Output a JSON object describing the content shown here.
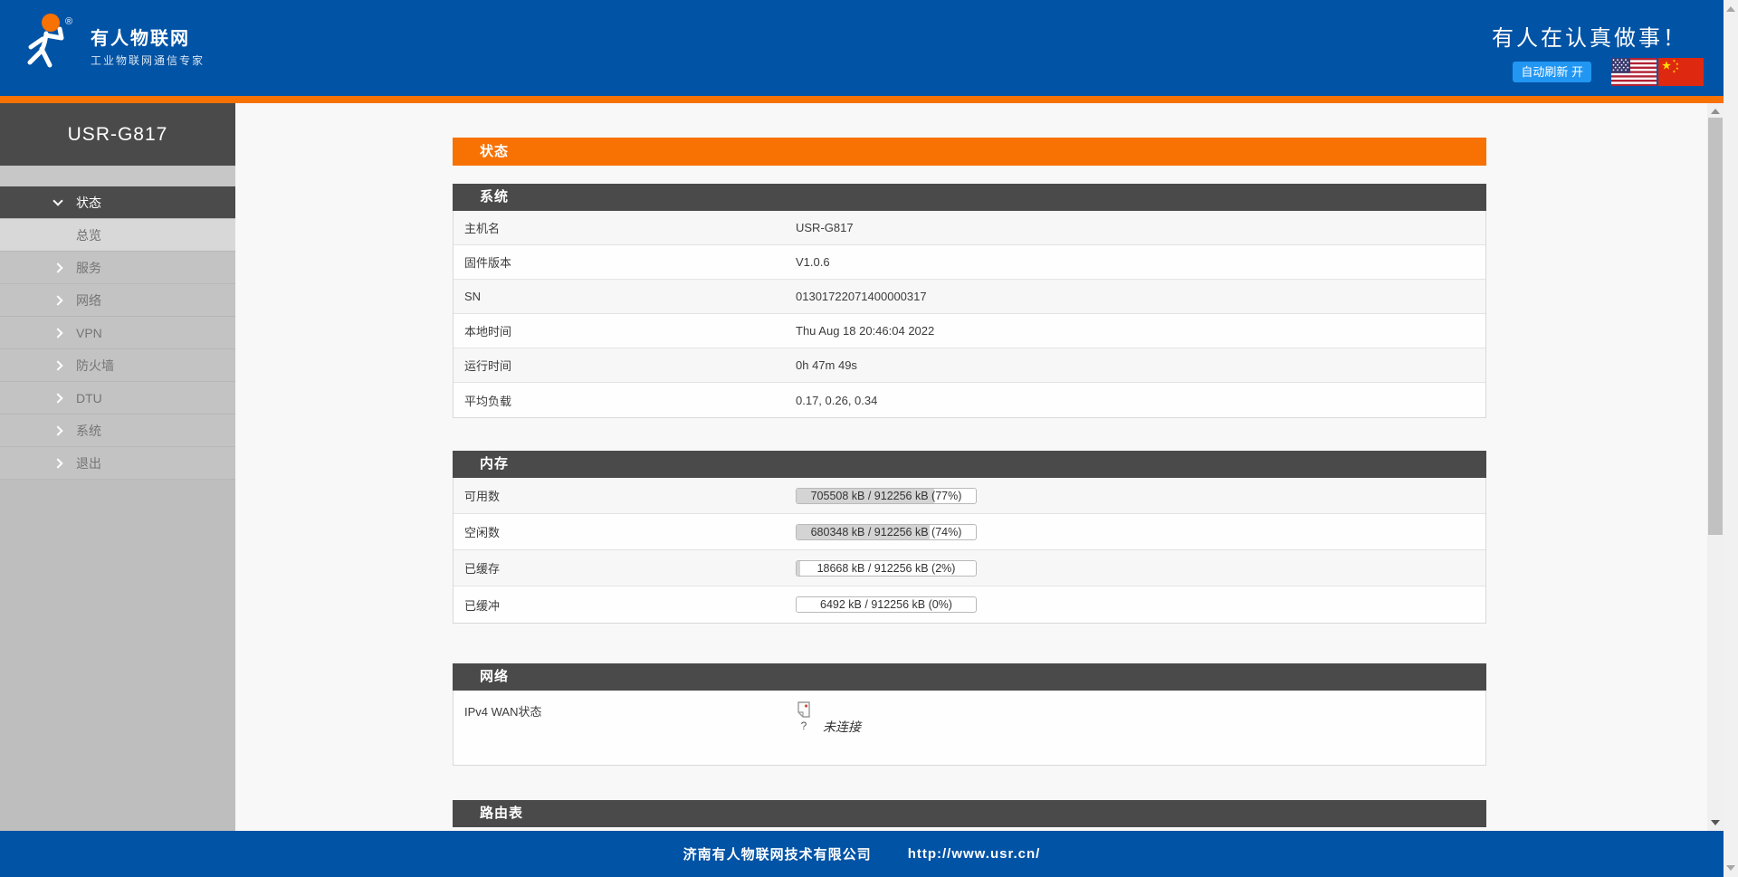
{
  "colors": {
    "header_blue": "#0153a5",
    "accent_orange": "#f87103",
    "section_dark": "#4a4a4a",
    "sidebar_gray": "#bebebe",
    "refresh_button_blue": "#2196f3",
    "progress_fill_gray": "#d4d4d4"
  },
  "header": {
    "brand_name": "有人物联网",
    "brand_reg": "®",
    "brand_tagline": "工业物联网通信专家",
    "slogan": "有人在认真做事！",
    "autorefresh_label": "自动刷新 开",
    "flags": [
      "us-flag",
      "cn-flag"
    ]
  },
  "sidebar": {
    "device_title": "USR-G817",
    "items": [
      {
        "label": "状态",
        "chevron": "down",
        "state": "active"
      },
      {
        "label": "总览",
        "chevron": "none",
        "state": "selected"
      },
      {
        "label": "服务",
        "chevron": "right",
        "state": "normal"
      },
      {
        "label": "网络",
        "chevron": "right",
        "state": "normal"
      },
      {
        "label": "VPN",
        "chevron": "right",
        "state": "normal"
      },
      {
        "label": "防火墙",
        "chevron": "right",
        "state": "normal"
      },
      {
        "label": "DTU",
        "chevron": "right",
        "state": "normal"
      },
      {
        "label": "系统",
        "chevron": "right",
        "state": "normal"
      },
      {
        "label": "退出",
        "chevron": "right",
        "state": "normal"
      }
    ]
  },
  "main": {
    "page_title": "状态",
    "system": {
      "title": "系统",
      "rows": [
        {
          "label": "主机名",
          "value": "USR-G817"
        },
        {
          "label": "固件版本",
          "value": "V1.0.6"
        },
        {
          "label": "SN",
          "value": "01301722071400000317"
        },
        {
          "label": "本地时间",
          "value": "Thu Aug 18 20:46:04 2022"
        },
        {
          "label": "运行时间",
          "value": "0h 47m 49s"
        },
        {
          "label": "平均负载",
          "value": "0.17, 0.26, 0.34"
        }
      ]
    },
    "memory": {
      "title": "内存",
      "rows": [
        {
          "label": "可用数",
          "text": "705508 kB / 912256 kB (77%)",
          "percent": 77
        },
        {
          "label": "空闲数",
          "text": "680348 kB / 912256 kB (74%)",
          "percent": 74
        },
        {
          "label": "已缓存",
          "text": "18668 kB / 912256 kB (2%)",
          "percent": 2
        },
        {
          "label": "已缓冲",
          "text": "6492 kB / 912256 kB (0%)",
          "percent": 0
        }
      ]
    },
    "network": {
      "title": "网络",
      "row_label": "IPv4 WAN状态",
      "row_status": "未连接",
      "broken_image_mark": "?"
    },
    "route": {
      "title": "路由表"
    }
  },
  "footer": {
    "company": "济南有人物联网技术有限公司",
    "url": "http://www.usr.cn/"
  }
}
